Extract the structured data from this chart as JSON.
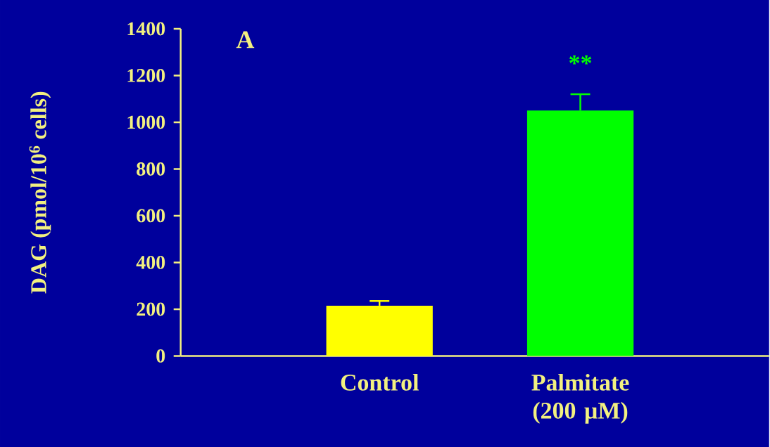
{
  "chart_data": {
    "type": "bar",
    "ylabel": "DAG (pmol/10$^{6}$ cells)",
    "categories": [
      "Control",
      "Palmitate (200 µM)"
    ],
    "values": [
      215,
      1050
    ],
    "errors": [
      20,
      70
    ],
    "colors": [
      "#ffff00",
      "#00ff00"
    ],
    "ylim": [
      0,
      1400
    ],
    "yticks": [
      0,
      200,
      400,
      600,
      800,
      1000,
      1200,
      1400
    ],
    "annotations": [
      "A",
      "**"
    ]
  }
}
